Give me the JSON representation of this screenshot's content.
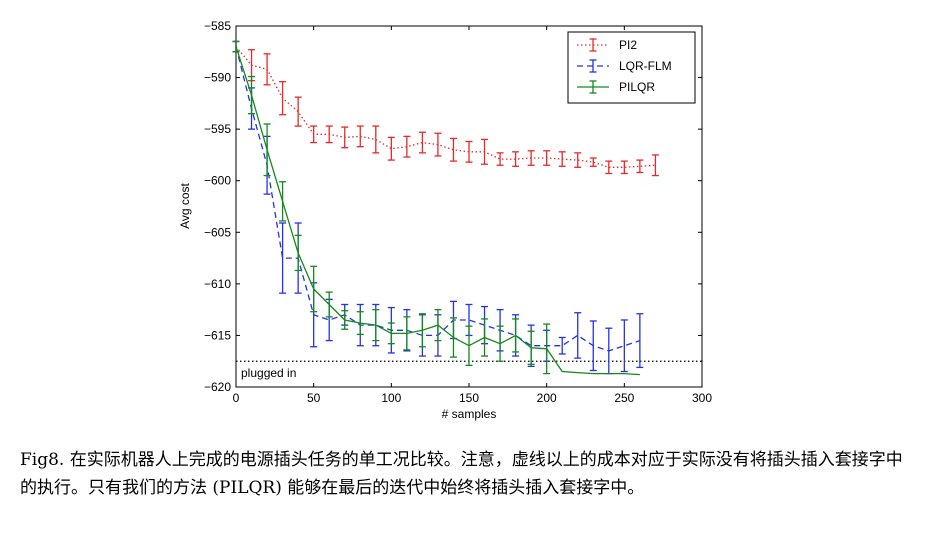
{
  "chart_data": {
    "type": "line",
    "xlabel": "# samples",
    "ylabel": "Avg cost",
    "xlim": [
      0,
      300
    ],
    "ylim": [
      -620,
      -585
    ],
    "x_ticks": [
      "0",
      "50",
      "100",
      "150",
      "200",
      "250",
      "300"
    ],
    "y_ticks": [
      "−585",
      "−590",
      "−595",
      "−600",
      "−605",
      "−610",
      "−615",
      "−620"
    ],
    "grid": false,
    "legend": "top-right",
    "reference_line": {
      "y": -617.5,
      "label": "plugged in"
    },
    "series": [
      {
        "name": "PI2",
        "color": "#e8282a",
        "style": "dotted",
        "x": [
          0,
          10,
          20,
          30,
          40,
          50,
          60,
          70,
          80,
          90,
          100,
          110,
          120,
          130,
          140,
          150,
          160,
          170,
          180,
          190,
          200,
          210,
          220,
          230,
          240,
          250,
          260,
          270
        ],
        "y": [
          -587.0,
          -588.8,
          -589.2,
          -592.0,
          -593.3,
          -595.5,
          -595.5,
          -595.8,
          -595.7,
          -596.0,
          -596.9,
          -596.7,
          -596.3,
          -596.5,
          -597.0,
          -597.2,
          -597.2,
          -597.9,
          -597.9,
          -597.8,
          -597.8,
          -597.9,
          -598.0,
          -598.2,
          -598.7,
          -598.7,
          -598.6,
          -598.5
        ],
        "err": [
          0.5,
          1.5,
          1.5,
          1.6,
          1.4,
          0.8,
          0.8,
          1.0,
          1.0,
          1.3,
          1.1,
          1.0,
          1.0,
          1.1,
          1.1,
          1.0,
          1.2,
          0.6,
          0.7,
          0.7,
          0.7,
          0.7,
          0.7,
          0.4,
          0.6,
          0.6,
          0.6,
          1.0
        ]
      },
      {
        "name": "LQR-FLM",
        "color": "#2432e8",
        "style": "dashed",
        "x": [
          0,
          10,
          20,
          30,
          40,
          50,
          60,
          70,
          80,
          90,
          100,
          110,
          120,
          130,
          140,
          150,
          160,
          170,
          180,
          190,
          200,
          210,
          220,
          230,
          240,
          250,
          260
        ],
        "y": [
          -587.0,
          -593.0,
          -598.5,
          -607.5,
          -607.5,
          -613.0,
          -613.5,
          -613.0,
          -614.0,
          -614.0,
          -614.5,
          -614.5,
          -615.0,
          -615.0,
          -613.5,
          -613.5,
          -614.0,
          -614.5,
          -615.0,
          -616.0,
          -616.0,
          -616.0,
          -615.0,
          -616.0,
          -616.5,
          -616.0,
          -615.5
        ],
        "err": [
          0.5,
          2.0,
          2.8,
          3.4,
          3.4,
          3.1,
          2.0,
          1.0,
          2.0,
          2.0,
          2.2,
          2.0,
          2.0,
          2.0,
          1.8,
          1.5,
          1.8,
          2.0,
          2.0,
          2.0,
          1.5,
          0.8,
          2.2,
          2.4,
          2.2,
          2.5,
          2.6
        ]
      },
      {
        "name": "PILQR",
        "color": "#158a1a",
        "style": "solid",
        "x": [
          0,
          10,
          20,
          30,
          40,
          50,
          60,
          70,
          80,
          90,
          100,
          110,
          120,
          130,
          140,
          150,
          160,
          170,
          180,
          190,
          200,
          210,
          220,
          230,
          240,
          250,
          260
        ],
        "y": [
          -587.0,
          -591.7,
          -597.0,
          -602.0,
          -607.0,
          -610.5,
          -612.0,
          -613.5,
          -613.8,
          -614.0,
          -614.8,
          -614.8,
          -614.5,
          -614.0,
          -615.2,
          -616.0,
          -615.2,
          -615.8,
          -615.0,
          -616.2,
          -616.3,
          -618.5,
          -618.6,
          -618.7,
          -618.7,
          -618.7,
          -618.8
        ],
        "err": [
          0.5,
          1.8,
          2.5,
          1.9,
          1.7,
          2.2,
          1.2,
          0.9,
          1.1,
          1.5,
          1.0,
          1.6,
          1.6,
          1.5,
          1.9,
          1.9,
          1.8,
          1.7,
          1.6,
          1.6,
          2.4,
          0.0,
          0.0,
          0.0,
          0.0,
          0.0,
          0.0
        ]
      }
    ]
  },
  "caption": "Fig8. 在实际机器人上完成的电源插头任务的单工况比较。注意，虚线以上的成本对应于实际没有将插头插入套接字中的执行。只有我们的方法 (PILQR) 能够在最后的迭代中始终将插头插入套接字中。"
}
